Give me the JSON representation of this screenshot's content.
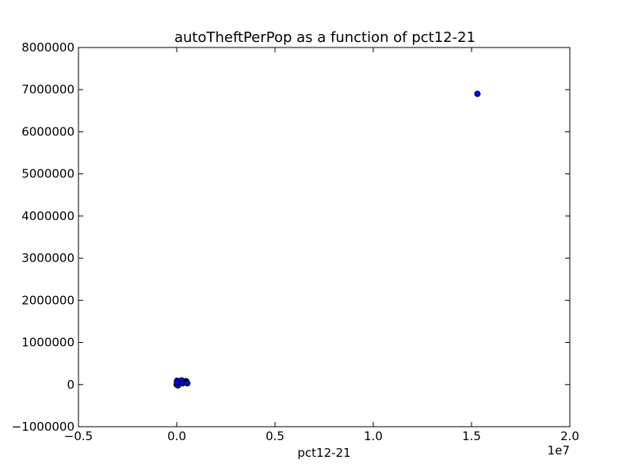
{
  "chart_data": {
    "type": "scatter",
    "title": "autoTheftPerPop as a function of pct12-21",
    "xlabel": "pct12-21",
    "ylabel": "",
    "x_offset_label": "1e7",
    "xlim": [
      -5000000,
      20000000
    ],
    "ylim": [
      -1000000,
      8000000
    ],
    "xticks": [
      -5000000,
      0,
      5000000,
      10000000,
      15000000,
      20000000
    ],
    "xtick_labels": [
      "−0.5",
      "0.0",
      "0.5",
      "1.0",
      "1.5",
      "2.0"
    ],
    "yticks": [
      -1000000,
      0,
      1000000,
      2000000,
      3000000,
      4000000,
      5000000,
      6000000,
      7000000,
      8000000
    ],
    "ytick_labels": [
      "−1000000",
      "0",
      "1000000",
      "2000000",
      "3000000",
      "4000000",
      "5000000",
      "6000000",
      "7000000",
      "8000000"
    ],
    "grid": false,
    "marker_color": "#0000ff",
    "marker_edge_color": "#000000",
    "points": [
      {
        "x": 0,
        "y": 0
      },
      {
        "x": 40000,
        "y": 20000
      },
      {
        "x": 80000,
        "y": 60000
      },
      {
        "x": 20000,
        "y": 90000
      },
      {
        "x": 120000,
        "y": 40000
      },
      {
        "x": 180000,
        "y": 70000
      },
      {
        "x": 250000,
        "y": 100000
      },
      {
        "x": 300000,
        "y": 30000
      },
      {
        "x": 60000,
        "y": -20000
      },
      {
        "x": 10000,
        "y": 50000
      },
      {
        "x": 480000,
        "y": 80000
      },
      {
        "x": 500000,
        "y": 60000
      },
      {
        "x": 520000,
        "y": 40000
      },
      {
        "x": 540000,
        "y": 30000
      },
      {
        "x": 15300000,
        "y": 6900000
      }
    ]
  }
}
